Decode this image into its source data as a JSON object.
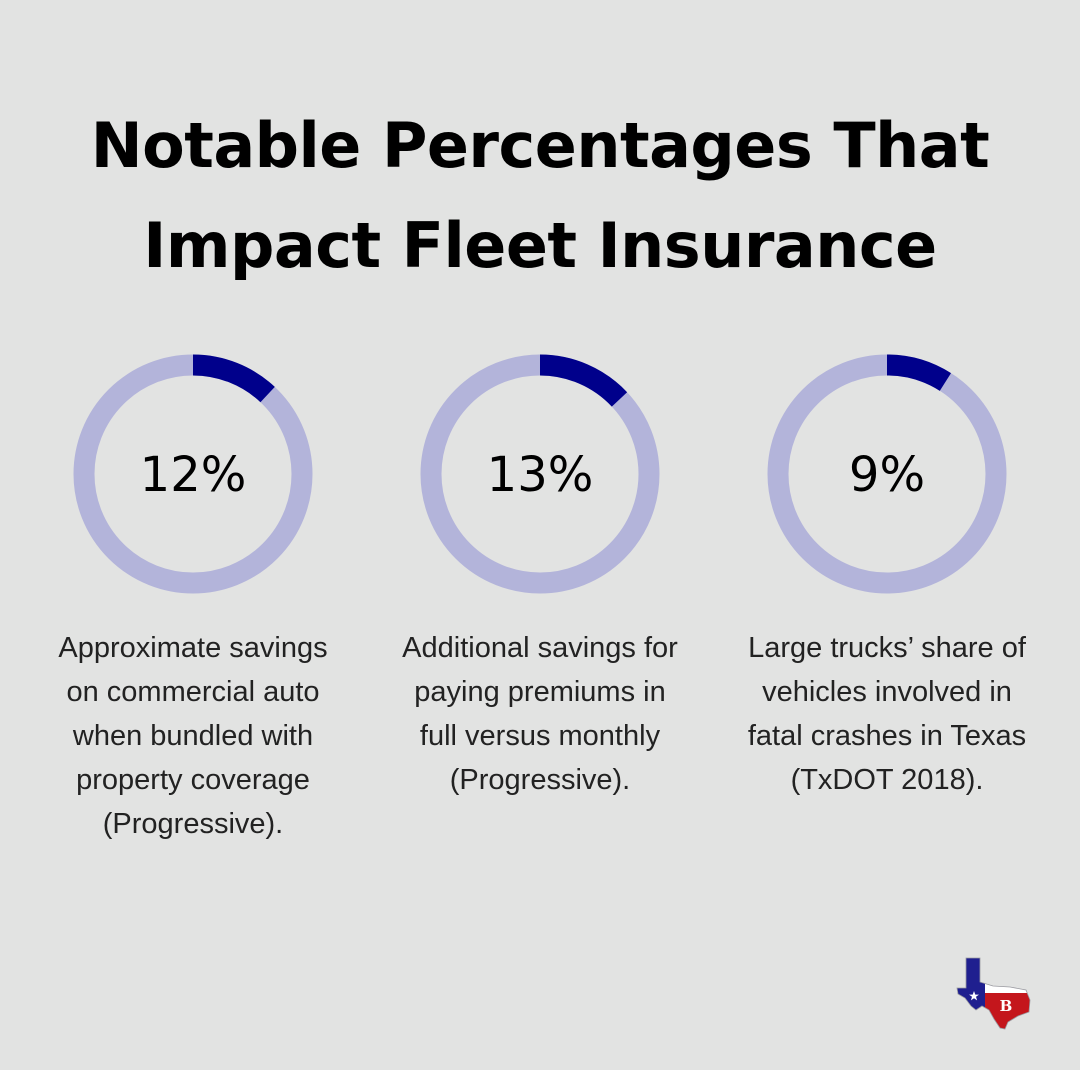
{
  "title": {
    "line1": "Notable Percentages That",
    "line2": "Impact Fleet Insurance"
  },
  "colors": {
    "background": "#e2e3e2",
    "ring_track": "#b3b4da",
    "ring_fill": "#00008b",
    "text": "#000000"
  },
  "chart_data": {
    "type": "pie",
    "charts": [
      {
        "value": 12,
        "label": "12%",
        "description": [
          "Approximate savings",
          "on commercial auto",
          "when bundled with",
          "property coverage",
          "(Progressive)."
        ]
      },
      {
        "value": 13,
        "label": "13%",
        "description": [
          "Additional savings for",
          "paying premiums in",
          "full versus monthly",
          "(Progressive)."
        ]
      },
      {
        "value": 9,
        "label": "9%",
        "description": [
          "Large trucks’ share of",
          "vehicles involved in",
          "fatal crashes in Texas",
          "(TxDOT 2018)."
        ]
      }
    ]
  },
  "logo": {
    "icon": "texas-flag-map-icon",
    "monogram": "B"
  }
}
